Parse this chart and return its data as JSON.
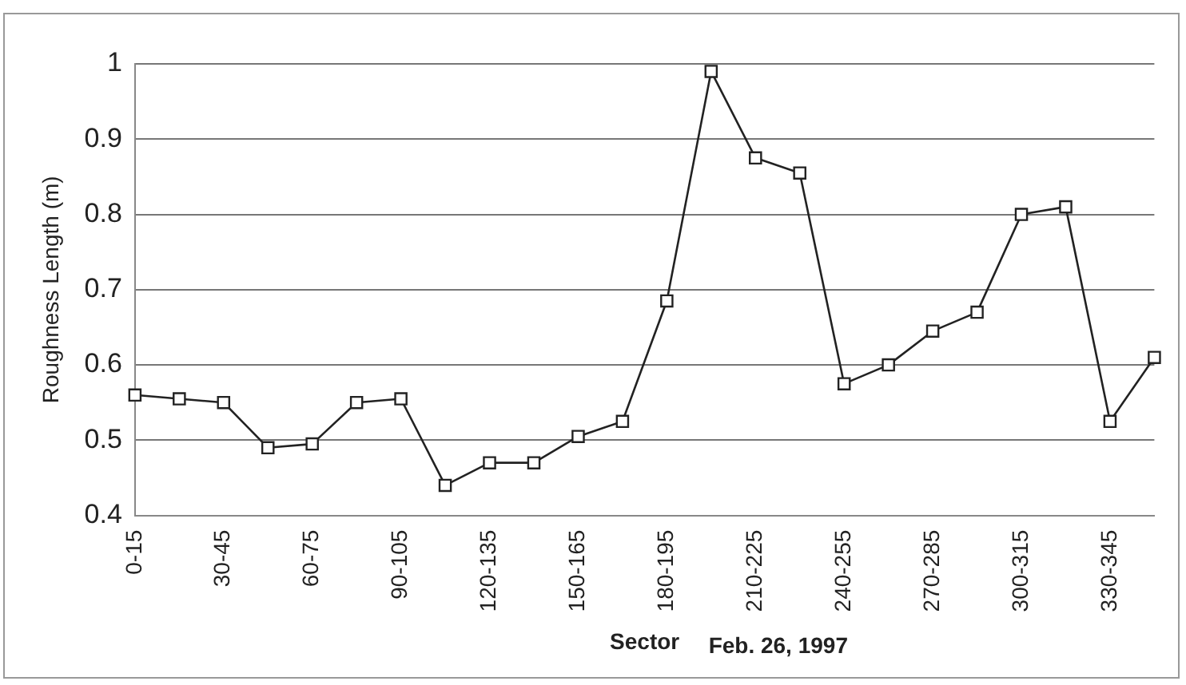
{
  "chart_data": {
    "type": "line",
    "xlabel": "Sector",
    "ylabel": "Roughness Length (m)",
    "annotations": [
      "Feb. 26, 1997"
    ],
    "categories": [
      "0-15",
      null,
      "30-45",
      null,
      "60-75",
      null,
      "90-105",
      null,
      "120-135",
      null,
      "150-165",
      null,
      "180-195",
      null,
      "210-225",
      null,
      "240-255",
      null,
      "270-285",
      null,
      "300-315",
      null,
      "330-345",
      null
    ],
    "series": [
      {
        "color": "#222222",
        "values": [
          0.56,
          0.555,
          0.55,
          0.49,
          0.495,
          0.55,
          0.555,
          0.44,
          0.47,
          0.47,
          0.505,
          0.525,
          0.685,
          0.99,
          0.875,
          0.855,
          0.575,
          0.6,
          0.645,
          0.67,
          0.8,
          0.81,
          0.525,
          0.61
        ]
      }
    ],
    "ylim": [
      0.4,
      1
    ],
    "yticks": [
      0.4,
      0.5,
      0.6,
      0.7,
      0.8,
      0.9,
      1
    ],
    "grid": "y",
    "marker": "square",
    "line_style": "solid",
    "legend": false
  }
}
